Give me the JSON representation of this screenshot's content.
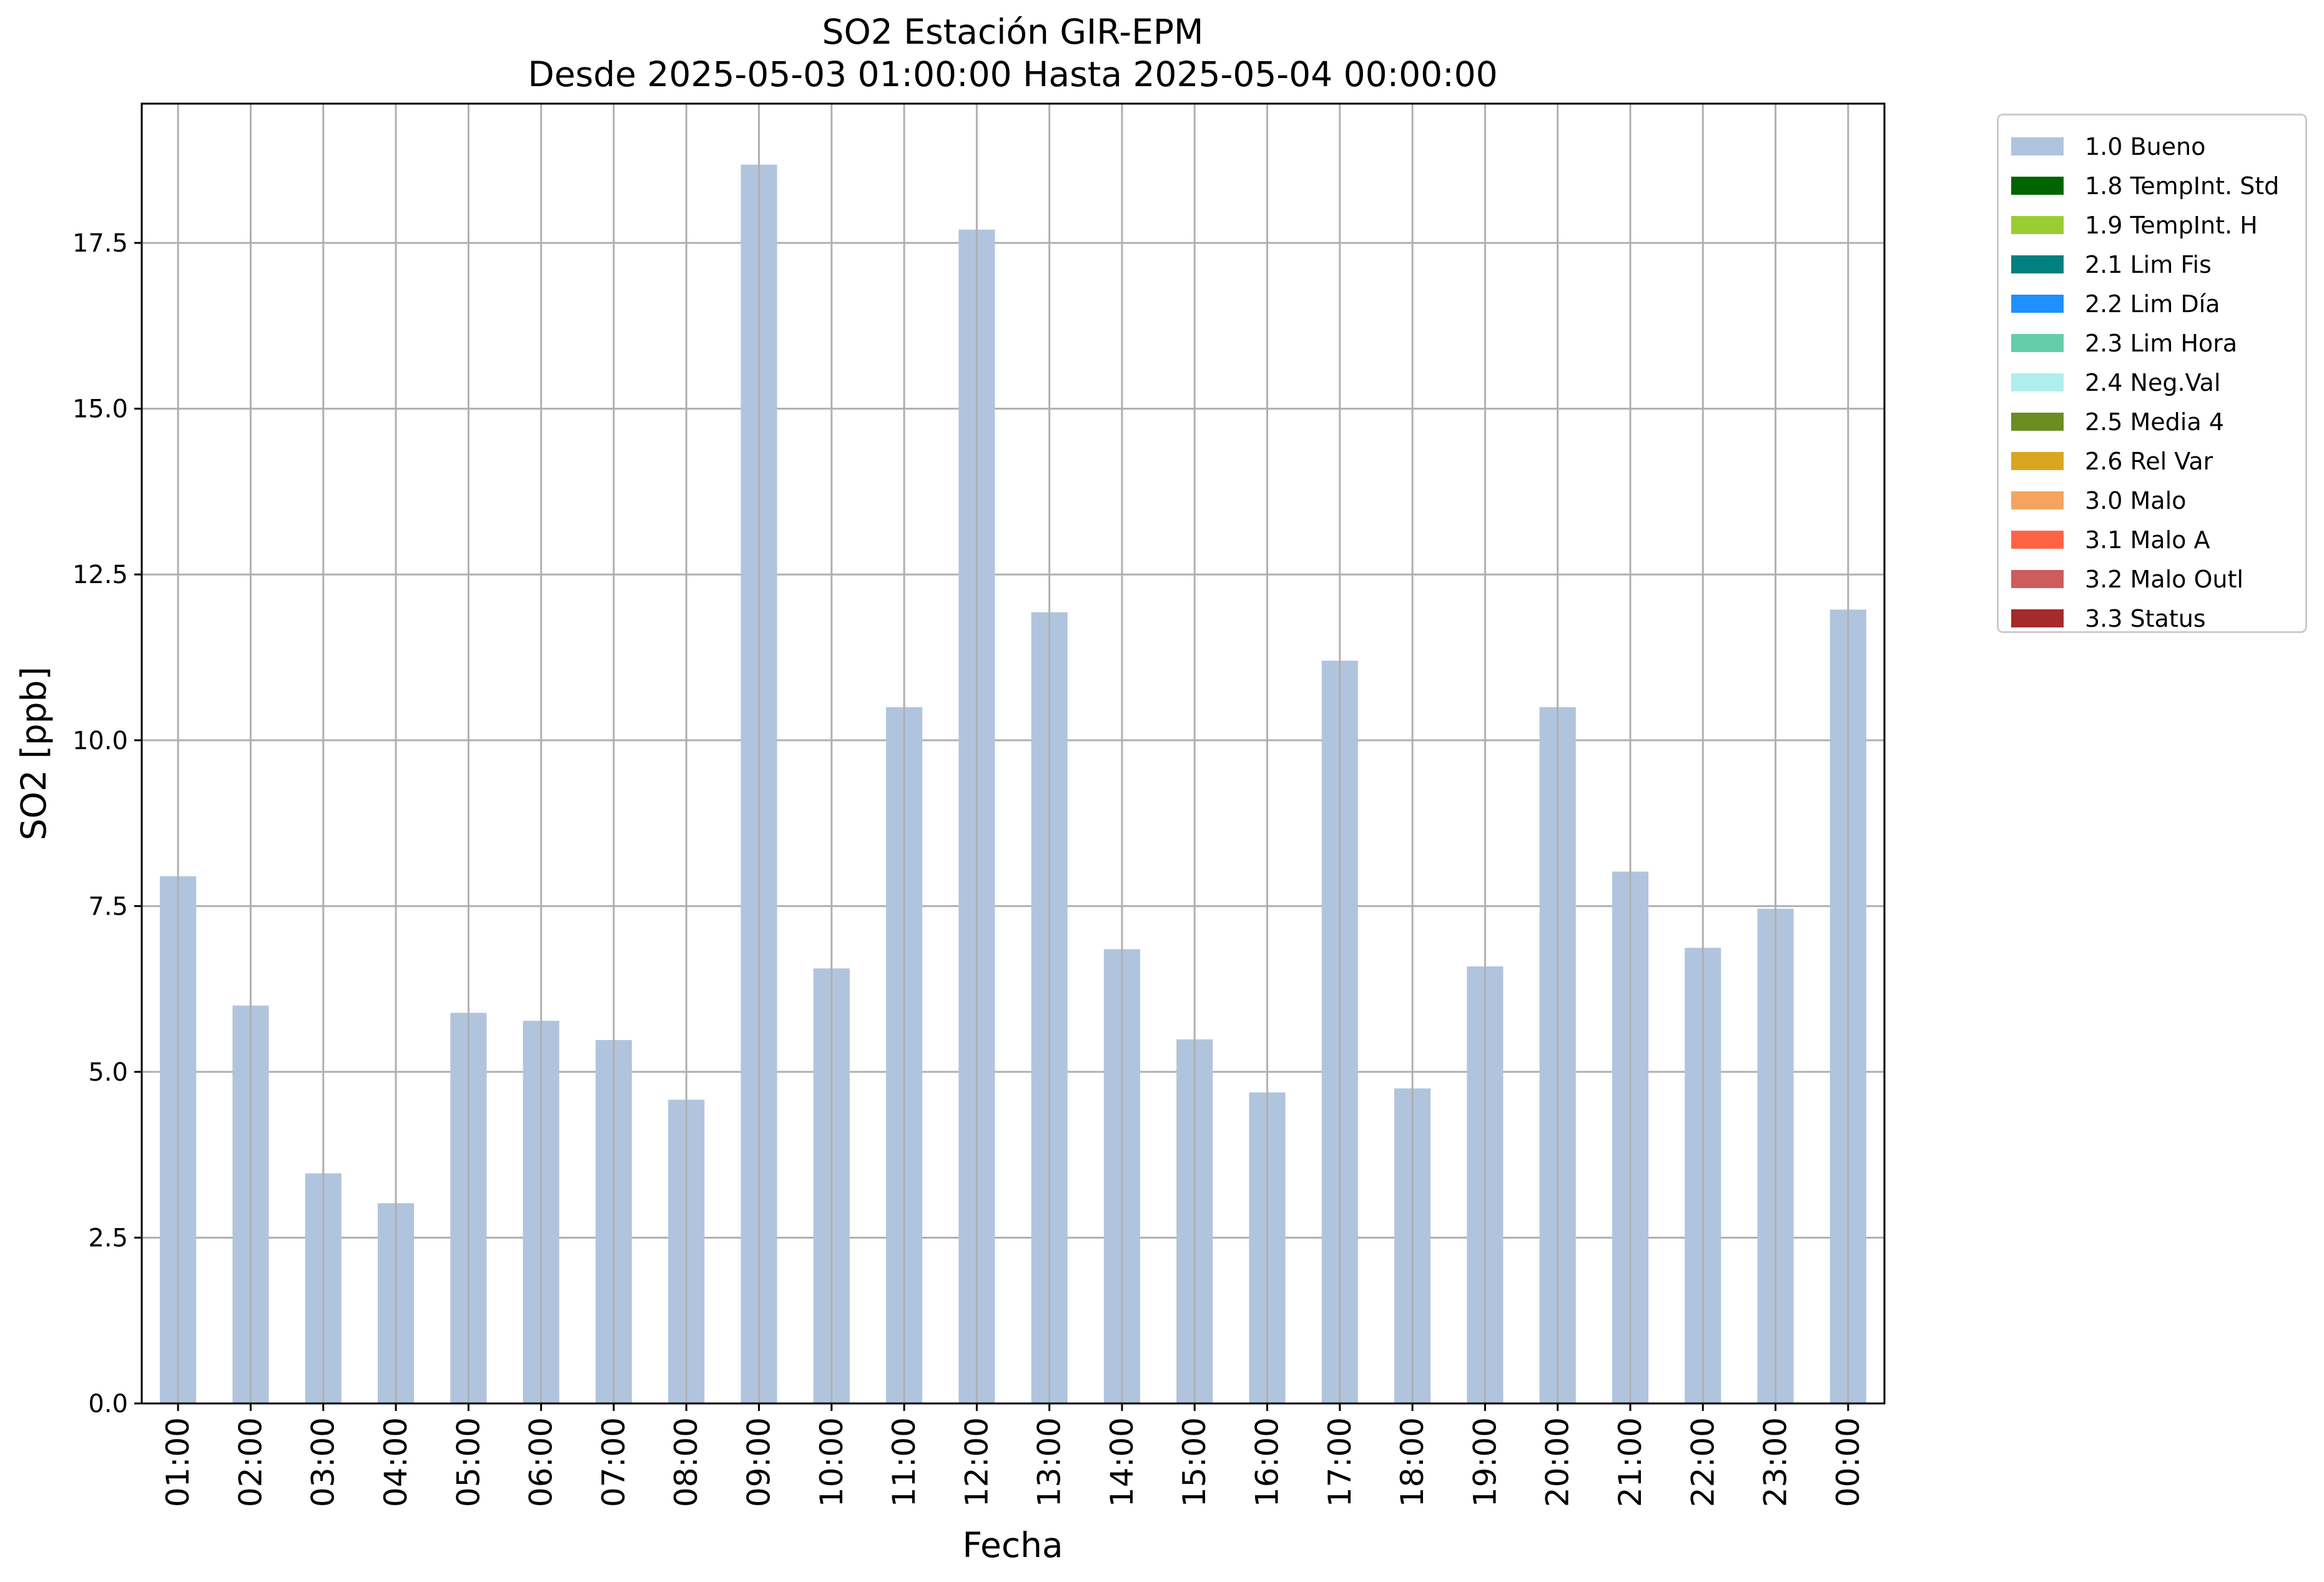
{
  "chart_data": {
    "type": "bar",
    "title": "SO2 Estación GIR-EPM",
    "subtitle": "Desde 2025-05-03 01:00:00 Hasta 2025-05-04 00:00:00",
    "xlabel": "Fecha",
    "ylabel": "SO2 [ppb]",
    "ylim": [
      0,
      19.6
    ],
    "yticks": [
      "0.0",
      "2.5",
      "5.0",
      "7.5",
      "10.0",
      "12.5",
      "15.0",
      "17.5"
    ],
    "grid": true,
    "legend_position": "outside-top-right",
    "categories": [
      "01:00",
      "02:00",
      "03:00",
      "04:00",
      "05:00",
      "06:00",
      "07:00",
      "08:00",
      "09:00",
      "10:00",
      "11:00",
      "12:00",
      "13:00",
      "14:00",
      "15:00",
      "16:00",
      "17:00",
      "18:00",
      "19:00",
      "20:00",
      "21:00",
      "22:00",
      "23:00",
      "00:00"
    ],
    "series": [
      {
        "name": "1.0 Bueno",
        "color": "#b0c4de",
        "values": [
          7.95,
          6.0,
          3.47,
          3.02,
          5.89,
          5.77,
          5.48,
          4.58,
          18.68,
          6.56,
          10.5,
          17.7,
          11.93,
          6.85,
          5.49,
          4.69,
          11.2,
          4.75,
          6.59,
          10.5,
          8.02,
          6.87,
          7.46,
          11.97
        ]
      }
    ],
    "legend": [
      {
        "label": "1.0 Bueno",
        "color": "#b0c4de"
      },
      {
        "label": "1.8 TempInt. Std",
        "color": "#006400"
      },
      {
        "label": "1.9 TempInt. H",
        "color": "#9acd32"
      },
      {
        "label": "2.1 Lim Fis",
        "color": "#008080"
      },
      {
        "label": "2.2 Lim Día",
        "color": "#1e90ff"
      },
      {
        "label": "2.3 Lim Hora",
        "color": "#66cdaa"
      },
      {
        "label": "2.4 Neg.Val",
        "color": "#afeeee"
      },
      {
        "label": "2.5 Media 4",
        "color": "#6b8e23"
      },
      {
        "label": "2.6 Rel Var",
        "color": "#daa520"
      },
      {
        "label": "3.0 Malo",
        "color": "#f4a460"
      },
      {
        "label": "3.1 Malo A",
        "color": "#ff6347"
      },
      {
        "label": "3.2 Malo Outl",
        "color": "#cd5c5c"
      },
      {
        "label": "3.3 Status",
        "color": "#a52a2a"
      }
    ]
  }
}
